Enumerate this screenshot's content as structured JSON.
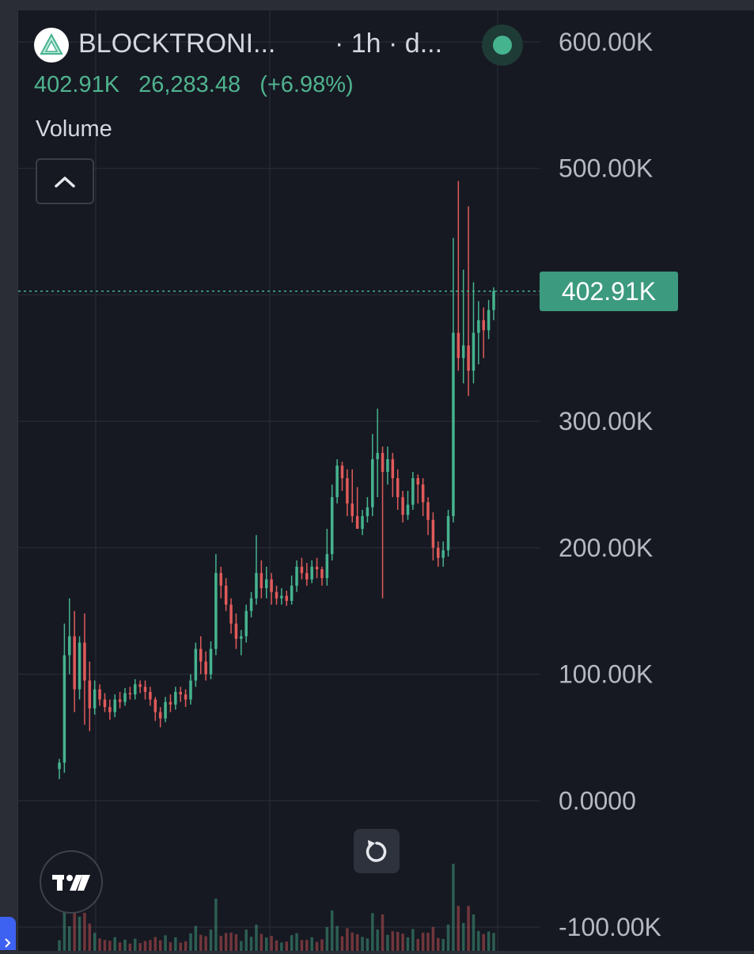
{
  "header": {
    "symbol": "BLOCKTRONI...",
    "interval": "· 1h · d...",
    "volume_value": "402.91K",
    "price_value": "26,283.48",
    "change": "(+6.98%)",
    "indicator": "Volume"
  },
  "colors": {
    "background": "#161922",
    "up": "#46b38f",
    "down": "#e05a5a",
    "grid": "#2b2f39",
    "text": "#b6b9c2",
    "badge": "#3c9a7e"
  },
  "icons": {
    "logo": "triangle-logo-icon",
    "collapse": "chevron-up-icon",
    "reset": "reset-icon",
    "brand": "tradingview-logo-icon",
    "side": "chevron-right-icon"
  },
  "chart_data": {
    "type": "candlestick",
    "indicator": "Volume",
    "y_axis": {
      "ticks": [
        600000,
        500000,
        400000,
        300000,
        200000,
        100000,
        0,
        -100000
      ],
      "tick_labels": [
        "600.00K",
        "500.00K",
        "400.00K",
        "300.00K",
        "200.00K",
        "100.00K",
        "0.0000",
        "-100.00K"
      ],
      "range": [
        -100000,
        600000
      ]
    },
    "last_value": 402910,
    "last_value_label": "402.91K",
    "grid": true,
    "candles": [
      [
        25000,
        30000,
        17000,
        33000
      ],
      [
        30000,
        115000,
        22000,
        140000
      ],
      [
        115000,
        130000,
        100000,
        160000
      ],
      [
        130000,
        88000,
        70000,
        150000
      ],
      [
        88000,
        125000,
        80000,
        130000
      ],
      [
        125000,
        95000,
        60000,
        148000
      ],
      [
        95000,
        73000,
        55000,
        110000
      ],
      [
        73000,
        88000,
        68000,
        95000
      ],
      [
        88000,
        80000,
        75000,
        92000
      ],
      [
        80000,
        74000,
        70000,
        85000
      ],
      [
        74000,
        70000,
        64000,
        80000
      ],
      [
        70000,
        80000,
        66000,
        84000
      ],
      [
        80000,
        78000,
        73000,
        86000
      ],
      [
        78000,
        85000,
        75000,
        89000
      ],
      [
        85000,
        84000,
        80000,
        90000
      ],
      [
        84000,
        92000,
        80000,
        96000
      ],
      [
        92000,
        90000,
        85000,
        95000
      ],
      [
        90000,
        86000,
        80000,
        95000
      ],
      [
        86000,
        80000,
        75000,
        90000
      ],
      [
        80000,
        70000,
        63000,
        82000
      ],
      [
        70000,
        65000,
        58000,
        74000
      ],
      [
        65000,
        78000,
        62000,
        82000
      ],
      [
        78000,
        76000,
        70000,
        84000
      ],
      [
        76000,
        86000,
        72000,
        90000
      ],
      [
        86000,
        84000,
        78000,
        90000
      ],
      [
        84000,
        80000,
        74000,
        88000
      ],
      [
        80000,
        95000,
        76000,
        100000
      ],
      [
        95000,
        120000,
        90000,
        125000
      ],
      [
        120000,
        110000,
        100000,
        130000
      ],
      [
        110000,
        100000,
        95000,
        118000
      ],
      [
        100000,
        120000,
        96000,
        126000
      ],
      [
        120000,
        180000,
        115000,
        195000
      ],
      [
        180000,
        170000,
        160000,
        185000
      ],
      [
        170000,
        155000,
        150000,
        176000
      ],
      [
        155000,
        140000,
        132000,
        160000
      ],
      [
        140000,
        128000,
        120000,
        148000
      ],
      [
        128000,
        130000,
        115000,
        135000
      ],
      [
        130000,
        150000,
        125000,
        155000
      ],
      [
        150000,
        160000,
        145000,
        165000
      ],
      [
        160000,
        180000,
        155000,
        210000
      ],
      [
        180000,
        168000,
        160000,
        190000
      ],
      [
        168000,
        175000,
        160000,
        185000
      ],
      [
        175000,
        165000,
        155000,
        180000
      ],
      [
        165000,
        160000,
        155000,
        170000
      ],
      [
        160000,
        162000,
        155000,
        168000
      ],
      [
        162000,
        158000,
        154000,
        166000
      ],
      [
        158000,
        170000,
        155000,
        178000
      ],
      [
        170000,
        185000,
        165000,
        190000
      ],
      [
        185000,
        180000,
        175000,
        192000
      ],
      [
        180000,
        175000,
        170000,
        188000
      ],
      [
        175000,
        185000,
        172000,
        190000
      ],
      [
        185000,
        183000,
        176000,
        192000
      ],
      [
        183000,
        176000,
        170000,
        185000
      ],
      [
        176000,
        195000,
        170000,
        215000
      ],
      [
        195000,
        240000,
        190000,
        250000
      ],
      [
        240000,
        265000,
        235000,
        270000
      ],
      [
        265000,
        255000,
        245000,
        268000
      ],
      [
        255000,
        235000,
        225000,
        262000
      ],
      [
        235000,
        225000,
        220000,
        262000
      ],
      [
        225000,
        215000,
        215000,
        248000
      ],
      [
        215000,
        225000,
        210000,
        230000
      ],
      [
        225000,
        232000,
        220000,
        240000
      ],
      [
        232000,
        270000,
        225000,
        290000
      ],
      [
        270000,
        275000,
        240000,
        310000
      ],
      [
        275000,
        260000,
        160000,
        280000
      ],
      [
        260000,
        270000,
        250000,
        280000
      ],
      [
        270000,
        255000,
        240000,
        275000
      ],
      [
        255000,
        240000,
        230000,
        262000
      ],
      [
        240000,
        226000,
        220000,
        245000
      ],
      [
        226000,
        234000,
        222000,
        245000
      ],
      [
        234000,
        255000,
        230000,
        260000
      ],
      [
        255000,
        250000,
        235000,
        258000
      ],
      [
        250000,
        236000,
        225000,
        255000
      ],
      [
        236000,
        222000,
        210000,
        240000
      ],
      [
        222000,
        200000,
        190000,
        228000
      ],
      [
        200000,
        192000,
        185000,
        205000
      ],
      [
        192000,
        198000,
        185000,
        205000
      ],
      [
        198000,
        225000,
        193000,
        230000
      ],
      [
        225000,
        370000,
        220000,
        445000
      ],
      [
        370000,
        350000,
        340000,
        490000
      ],
      [
        350000,
        360000,
        330000,
        420000
      ],
      [
        360000,
        340000,
        320000,
        470000
      ],
      [
        340000,
        370000,
        330000,
        410000
      ],
      [
        370000,
        380000,
        345000,
        395000
      ],
      [
        380000,
        372000,
        350000,
        390000
      ],
      [
        372000,
        388000,
        365000,
        396000
      ],
      [
        388000,
        403000,
        380000,
        406000
      ]
    ]
  }
}
